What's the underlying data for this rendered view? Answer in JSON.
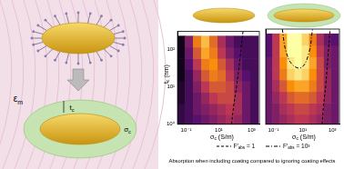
{
  "chart_data": [
    {
      "type": "heatmap",
      "x": [
        0.05,
        0.15,
        0.5,
        1.5,
        5,
        15,
        50,
        150,
        500,
        1500
      ],
      "y": [
        1.3,
        2.5,
        5,
        10,
        20,
        40,
        80,
        160
      ],
      "cells": [
        [
          0.15,
          0.2,
          0.25,
          0.3,
          0.35,
          0.4,
          0.45,
          0.4,
          0.3,
          0.2
        ],
        [
          0.15,
          0.2,
          0.3,
          0.35,
          0.4,
          0.45,
          0.5,
          0.45,
          0.3,
          0.2
        ],
        [
          0.1,
          0.2,
          0.3,
          0.4,
          0.5,
          0.55,
          0.55,
          0.45,
          0.3,
          0.2
        ],
        [
          0.1,
          0.2,
          0.35,
          0.5,
          0.6,
          0.6,
          0.55,
          0.4,
          0.3,
          0.2
        ],
        [
          0.05,
          0.2,
          0.4,
          0.6,
          0.7,
          0.65,
          0.5,
          0.35,
          0.25,
          0.2
        ],
        [
          0.05,
          0.25,
          0.5,
          0.7,
          0.75,
          0.6,
          0.45,
          0.3,
          0.2,
          0.2
        ],
        [
          0.05,
          0.3,
          0.6,
          0.8,
          0.7,
          0.5,
          0.35,
          0.25,
          0.2,
          0.2
        ],
        [
          0.05,
          0.35,
          0.7,
          0.85,
          0.65,
          0.45,
          0.3,
          0.2,
          0.2,
          0.2
        ]
      ],
      "zlim": [
        0,
        1
      ],
      "log": true,
      "xlim": [
        0.03,
        3000
      ],
      "ylim": [
        1,
        300
      ],
      "xticks": [
        {
          "value": 0.1,
          "label": "10⁻¹"
        },
        {
          "value": 10,
          "label": "10¹"
        },
        {
          "value": 1000,
          "label": "10³"
        }
      ],
      "yticks": [
        {
          "value": 1,
          "label": "10⁰"
        },
        {
          "value": 10,
          "label": "10¹"
        },
        {
          "value": 100,
          "label": "10²"
        }
      ],
      "x_label": {
        "base": "σ",
        "sub": "c",
        "rest": " (S/m)"
      },
      "y_label": {
        "base": "t",
        "sub": "c",
        "rest": " (nm)"
      },
      "series": [
        {
          "name": {
            "base": "F′",
            "sub": "abs",
            "rest": " = 1"
          },
          "type": "line",
          "line_style": "dashed",
          "color": "#000000",
          "x": [
            60,
            80,
            120,
            200,
            300
          ],
          "values": [
            1,
            3,
            10,
            60,
            300
          ]
        }
      ]
    },
    {
      "type": "heatmap",
      "x": [
        0.05,
        0.15,
        0.5,
        1.5,
        5,
        15,
        50,
        150,
        500,
        1500
      ],
      "y": [
        1.3,
        2.5,
        5,
        10,
        20,
        40,
        80,
        160
      ],
      "cells": [
        [
          0.3,
          0.35,
          0.4,
          0.45,
          0.5,
          0.5,
          0.45,
          0.4,
          0.35,
          0.3
        ],
        [
          0.3,
          0.35,
          0.45,
          0.5,
          0.55,
          0.55,
          0.5,
          0.45,
          0.35,
          0.3
        ],
        [
          0.3,
          0.4,
          0.5,
          0.6,
          0.65,
          0.65,
          0.6,
          0.5,
          0.4,
          0.3
        ],
        [
          0.3,
          0.45,
          0.6,
          0.75,
          0.8,
          0.8,
          0.7,
          0.55,
          0.4,
          0.3
        ],
        [
          0.3,
          0.5,
          0.7,
          0.9,
          0.95,
          0.9,
          0.75,
          0.55,
          0.4,
          0.3
        ],
        [
          0.3,
          0.5,
          0.75,
          0.95,
          1,
          0.95,
          0.8,
          0.55,
          0.35,
          0.3
        ],
        [
          0.25,
          0.5,
          0.8,
          1,
          1,
          0.95,
          0.75,
          0.5,
          0.35,
          0.3
        ],
        [
          0.25,
          0.5,
          0.8,
          1,
          1,
          0.9,
          0.7,
          0.45,
          0.3,
          0.25
        ]
      ],
      "zlim": [
        0,
        1
      ],
      "log": true,
      "xlim": [
        0.03,
        3000
      ],
      "ylim": [
        1,
        300
      ],
      "xticks": [
        {
          "value": 0.1,
          "label": "10⁻¹"
        },
        {
          "value": 10,
          "label": "10¹"
        },
        {
          "value": 1000,
          "label": "10³"
        }
      ],
      "yticks": [
        {
          "value": 1,
          "label": "10⁰"
        },
        {
          "value": 10,
          "label": "10¹"
        },
        {
          "value": 100,
          "label": "10²"
        }
      ],
      "tick_labels": "x",
      "x_label": {
        "base": "σ",
        "sub": "c",
        "rest": " (S/m)"
      },
      "series": [
        {
          "name": {
            "base": "F′",
            "sub": "abs",
            "rest": " = 1"
          },
          "type": "line",
          "line_style": "dashed",
          "color": "#000000",
          "x": [
            200,
            250,
            350,
            500,
            700
          ],
          "values": [
            1,
            3,
            10,
            60,
            300
          ]
        },
        {
          "name": {
            "base": "F′",
            "sub": "abs",
            "rest": " = 10³"
          },
          "type": "line",
          "line_style": "dashdot",
          "color": "#000000",
          "x": [
            0.4,
            0.7,
            2,
            8,
            25,
            45
          ],
          "values": [
            300,
            80,
            35,
            30,
            70,
            300
          ]
        }
      ]
    }
  ],
  "illustration": {
    "labels": [
      {
        "base": "ε",
        "sub": "m"
      },
      {
        "base": "t",
        "sub": "c"
      },
      {
        "base": "σ",
        "sub": "c"
      }
    ]
  },
  "caption": "Absorption when including coating compared to ignoring coating effects"
}
